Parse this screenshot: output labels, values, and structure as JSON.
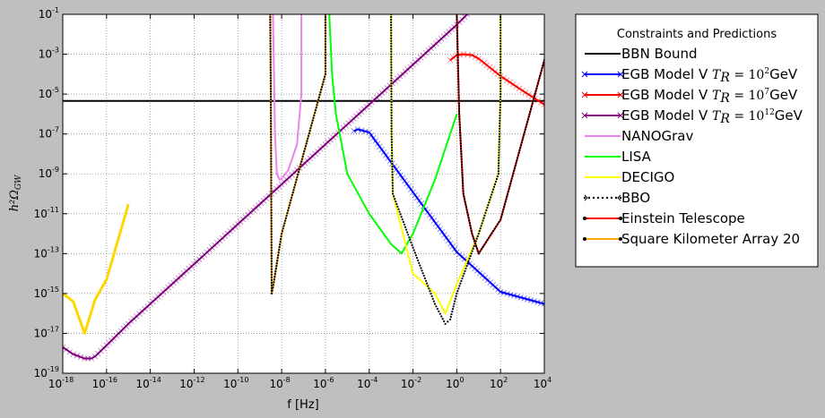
{
  "chart_data": {
    "type": "line",
    "title": "",
    "xlabel": "f [Hz]",
    "ylabel": "h²Ω_GW",
    "x_scale": "log",
    "y_scale": "log",
    "xlim": [
      1e-18,
      10000.0
    ],
    "ylim": [
      1e-19,
      0.1
    ],
    "grid": true,
    "x_ticks": [
      {
        "base": "10",
        "exp": "-18",
        "value": 1e-18
      },
      {
        "base": "10",
        "exp": "-16",
        "value": 1e-16
      },
      {
        "base": "10",
        "exp": "-14",
        "value": 1e-14
      },
      {
        "base": "10",
        "exp": "-12",
        "value": 1e-12
      },
      {
        "base": "10",
        "exp": "-10",
        "value": 1e-10
      },
      {
        "base": "10",
        "exp": "-8",
        "value": 1e-08
      },
      {
        "base": "10",
        "exp": "-6",
        "value": 1e-06
      },
      {
        "base": "10",
        "exp": "-4",
        "value": 0.0001
      },
      {
        "base": "10",
        "exp": "-2",
        "value": 0.01
      },
      {
        "base": "10",
        "exp": "0",
        "value": 1
      },
      {
        "base": "10",
        "exp": "2",
        "value": 100.0
      },
      {
        "base": "10",
        "exp": "4",
        "value": 10000.0
      }
    ],
    "y_ticks": [
      {
        "base": "10",
        "exp": "-19",
        "value": 1e-19
      },
      {
        "base": "10",
        "exp": "-17",
        "value": 1e-17
      },
      {
        "base": "10",
        "exp": "-15",
        "value": 1e-15
      },
      {
        "base": "10",
        "exp": "-13",
        "value": 1e-13
      },
      {
        "base": "10",
        "exp": "-11",
        "value": 1e-11
      },
      {
        "base": "10",
        "exp": "-9",
        "value": 1e-09
      },
      {
        "base": "10",
        "exp": "-7",
        "value": 1e-07
      },
      {
        "base": "10",
        "exp": "-5",
        "value": 1e-05
      },
      {
        "base": "10",
        "exp": "-3",
        "value": 0.001
      },
      {
        "base": "10",
        "exp": "-1",
        "value": 0.1
      }
    ],
    "legend": {
      "title": "Constraints and Predictions",
      "placement": "outside-right"
    },
    "series": [
      {
        "key": "bbn",
        "name": "BBN Bound",
        "color": "#000000",
        "style": "line",
        "marker": "none",
        "x": [
          1e-18,
          10000.0
        ],
        "y": [
          4.5e-06,
          4.5e-06
        ]
      },
      {
        "key": "egb2",
        "name_prefix": "EGB Model V ",
        "name_math": "T",
        "name_sub": "R",
        "name_eq": " = 10",
        "name_exp": "2",
        "name_suffix": "GeV",
        "color": "#0000ff",
        "style": "line-x",
        "marker": "x",
        "x": [
          2e-05,
          3e-05,
          0.0001,
          0.01,
          1,
          100.0,
          10000.0
        ],
        "y": [
          1.4e-07,
          1.7e-07,
          1.2e-07,
          1.2e-10,
          1.2e-13,
          1.2e-15,
          3e-16
        ]
      },
      {
        "key": "egb7",
        "name_prefix": "EGB Model V ",
        "name_math": "T",
        "name_sub": "R",
        "name_eq": " = 10",
        "name_exp": "7",
        "name_suffix": "GeV",
        "color": "#ff0000",
        "style": "line-x",
        "marker": "x",
        "x": [
          0.5,
          1,
          2,
          5,
          10,
          100,
          1000.0,
          10000.0
        ],
        "y": [
          0.0005,
          0.0009,
          0.001,
          0.0009,
          0.0006,
          8e-05,
          1.5e-05,
          3e-06
        ]
      },
      {
        "key": "egb12",
        "name_prefix": "EGB Model V ",
        "name_math": "T",
        "name_sub": "R",
        "name_eq": " = 10",
        "name_exp": "12",
        "name_suffix": "GeV",
        "color": "#800080",
        "style": "line-x",
        "marker": "x",
        "x": [
          1e-18,
          3e-18,
          1e-17,
          2e-17,
          3e-17,
          1e-16,
          1e-15,
          1e-14,
          1e-12,
          1e-10,
          1e-08,
          1e-06,
          0.0001,
          0.01,
          1,
          3
        ],
        "y": [
          2e-18,
          9e-19,
          5.5e-19,
          5.5e-19,
          7e-19,
          2.5e-18,
          3e-17,
          3e-16,
          3e-14,
          3e-12,
          3e-10,
          3e-08,
          3e-06,
          0.0003,
          0.03,
          0.1
        ]
      },
      {
        "key": "nanograv",
        "name": "NANOGrav",
        "color": "#ee82ee",
        "style": "line",
        "marker": "none",
        "x": [
          4e-09,
          4.5e-09,
          5e-09,
          6e-09,
          8e-09,
          1e-08,
          2e-08,
          5e-08,
          8e-08,
          8e-08
        ],
        "y": [
          0.1,
          0.0001,
          1e-07,
          1e-09,
          5e-10,
          6e-10,
          1.5e-09,
          3e-08,
          1e-05,
          0.1
        ]
      },
      {
        "key": "lisa",
        "name": "LISA",
        "color": "#00ff00",
        "style": "line",
        "marker": "none",
        "x": [
          1.5e-06,
          2e-06,
          3e-06,
          1e-05,
          0.0001,
          0.001,
          0.003,
          0.01,
          0.1,
          1
        ],
        "y": [
          0.1,
          0.0001,
          1e-06,
          1e-09,
          1e-11,
          3e-13,
          1e-13,
          1e-12,
          5e-10,
          1e-06
        ]
      },
      {
        "key": "decigo",
        "name": "DECIGO",
        "color": "#ffff00",
        "style": "line",
        "marker": "none",
        "x": [
          0.001,
          0.00105,
          0.0012,
          0.01,
          0.1,
          0.3,
          1,
          10,
          80,
          100,
          100
        ],
        "y": [
          0.1,
          1e-07,
          1e-10,
          1e-14,
          1e-15,
          1e-16,
          3e-15,
          1e-12,
          1e-09,
          1e-05,
          0.1
        ]
      },
      {
        "key": "bbo",
        "name": "BBO",
        "color": "#000000",
        "style": "dots",
        "marker": "dot",
        "x": [
          0.001,
          0.00105,
          0.0012,
          0.01,
          0.1,
          0.3,
          0.5,
          1,
          10,
          80,
          100,
          100
        ],
        "y": [
          0.1,
          1e-07,
          1e-10,
          2e-13,
          3e-16,
          3e-17,
          5e-17,
          1e-15,
          1e-12,
          1e-09,
          1e-05,
          0.1
        ]
      },
      {
        "key": "et",
        "name": "Einstein Telescope",
        "color": "#ff0000",
        "style": "line-dot",
        "marker": "dot",
        "x": [
          1,
          1.3,
          2,
          5,
          10,
          100,
          1000.0,
          10000.0
        ],
        "y": [
          0.1,
          1e-06,
          1e-10,
          1e-12,
          1e-13,
          5e-12,
          5e-08,
          0.0005
        ]
      },
      {
        "key": "ska",
        "name": "Square Kilometer Array 20",
        "color": "#ffa500",
        "style": "line-dot",
        "marker": "dot",
        "x": [
          3e-09,
          3.2e-09,
          3.5e-09,
          4e-09,
          1e-08,
          1e-07,
          1e-06,
          1e-06
        ],
        "y": [
          0.1,
          1e-05,
          1e-15,
          2e-15,
          1e-12,
          1e-08,
          0.0001,
          0.1
        ]
      },
      {
        "key": "pta",
        "name": "",
        "color": "#ffd700",
        "style": "line",
        "marker": "none",
        "x": [
          1e-18,
          3e-18,
          1e-17,
          3e-17,
          1e-16,
          1e-15
        ],
        "y": [
          1e-15,
          4e-16,
          1e-17,
          5e-16,
          5e-15,
          3e-11
        ]
      }
    ]
  }
}
